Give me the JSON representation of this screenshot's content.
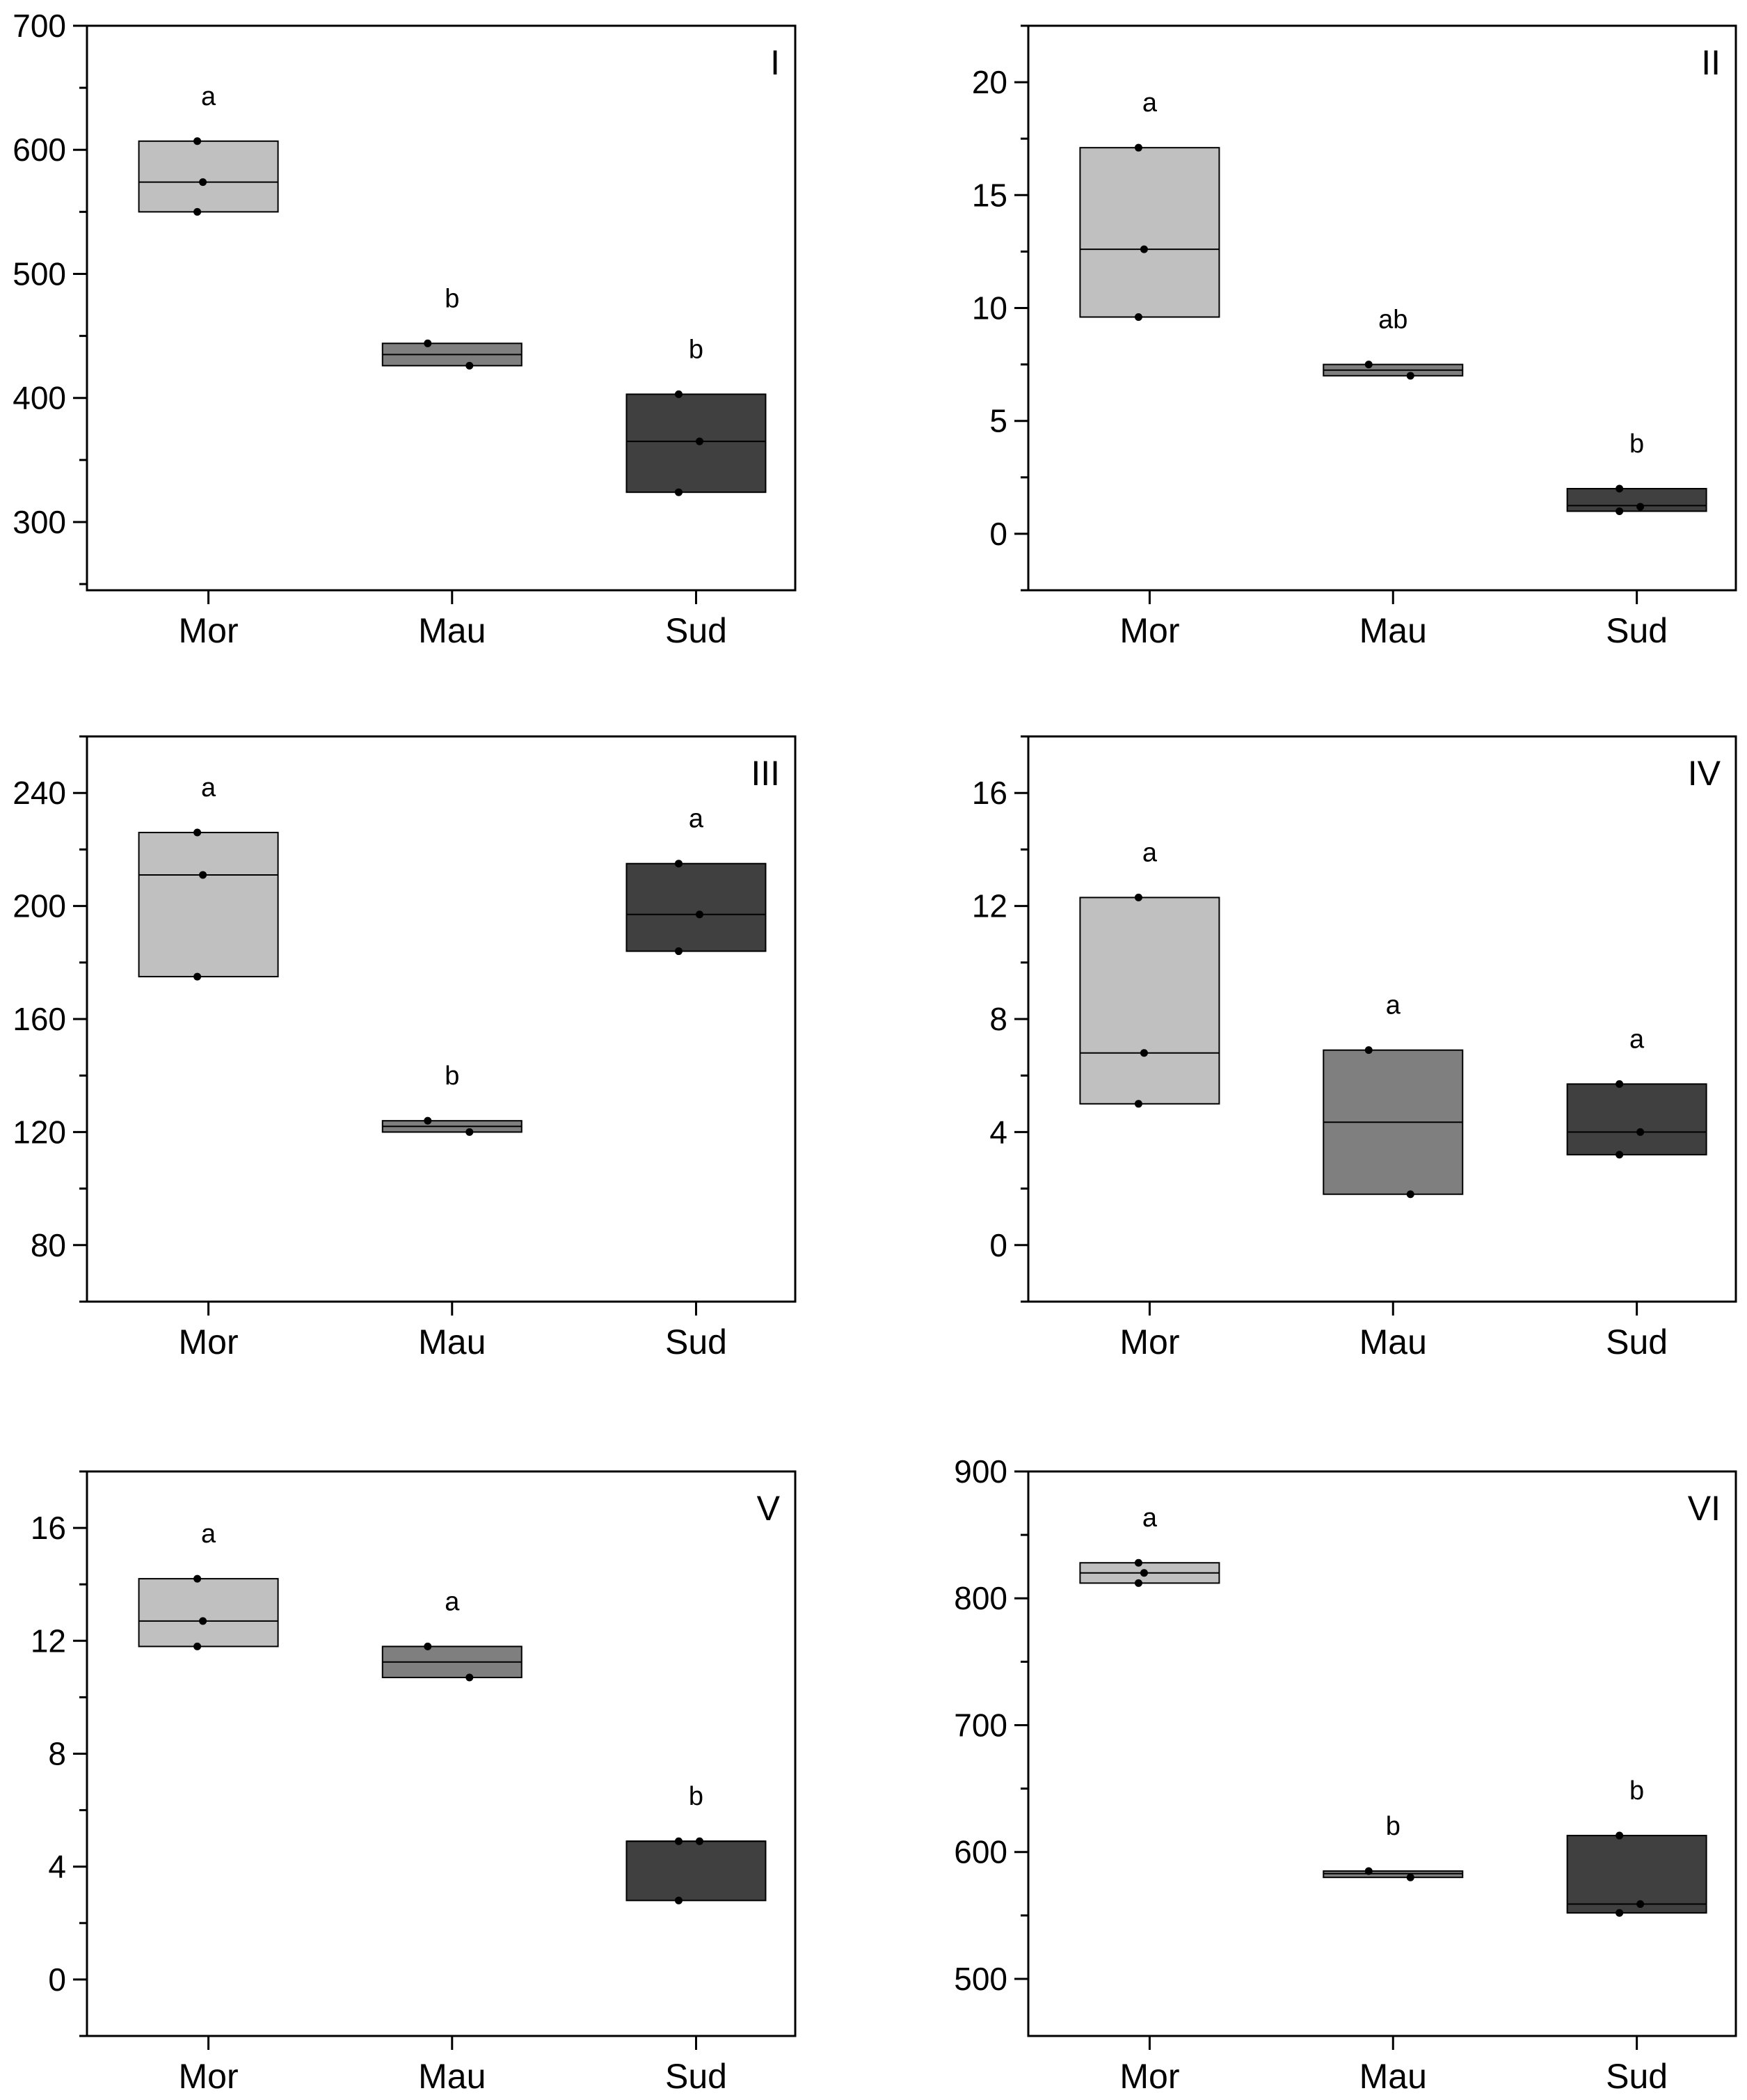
{
  "figure": {
    "categories": [
      "Mor",
      "Mau",
      "Sud"
    ]
  },
  "colors": {
    "Mor": "#c0c0c0",
    "Mau": "#7f7f7f",
    "Sud": "#404040"
  },
  "chart_data": [
    {
      "type": "box",
      "panel_label": "I",
      "categories": [
        "Mor",
        "Mau",
        "Sud"
      ],
      "ylim": [
        245,
        700
      ],
      "yticks": [
        300,
        400,
        500,
        600,
        700
      ],
      "boxes": [
        {
          "category": "Mor",
          "q1": 550,
          "median": 574,
          "q3": 607,
          "points": [
            607,
            574,
            550
          ],
          "sig": "a"
        },
        {
          "category": "Mau",
          "q1": 426,
          "median": 435,
          "q3": 444,
          "points": [
            444,
            426
          ],
          "sig": "b"
        },
        {
          "category": "Sud",
          "q1": 324,
          "median": 365,
          "q3": 403,
          "points": [
            403,
            365,
            324
          ],
          "sig": "b"
        }
      ]
    },
    {
      "type": "box",
      "panel_label": "II",
      "categories": [
        "Mor",
        "Mau",
        "Sud"
      ],
      "ylim": [
        -2.5,
        22.5
      ],
      "yticks": [
        0,
        5,
        10,
        15,
        20
      ],
      "boxes": [
        {
          "category": "Mor",
          "q1": 9.6,
          "median": 12.6,
          "q3": 17.1,
          "points": [
            17.1,
            12.6,
            9.6
          ],
          "sig": "a"
        },
        {
          "category": "Mau",
          "q1": 7.0,
          "median": 7.25,
          "q3": 7.5,
          "points": [
            7.5,
            7.0
          ],
          "sig": "ab"
        },
        {
          "category": "Sud",
          "q1": 1.0,
          "median": 1.25,
          "q3": 2.0,
          "points": [
            2.0,
            1.2,
            1.0
          ],
          "sig": "b"
        }
      ]
    },
    {
      "type": "box",
      "panel_label": "III",
      "categories": [
        "Mor",
        "Mau",
        "Sud"
      ],
      "ylim": [
        60,
        260
      ],
      "yticks": [
        80,
        120,
        160,
        200,
        240
      ],
      "boxes": [
        {
          "category": "Mor",
          "q1": 175,
          "median": 211,
          "q3": 226,
          "points": [
            226,
            211,
            175
          ],
          "sig": "a"
        },
        {
          "category": "Mau",
          "q1": 120,
          "median": 122,
          "q3": 124,
          "points": [
            124,
            120
          ],
          "sig": "b"
        },
        {
          "category": "Sud",
          "q1": 184,
          "median": 197,
          "q3": 215,
          "points": [
            215,
            197,
            184
          ],
          "sig": "a"
        }
      ]
    },
    {
      "type": "box",
      "panel_label": "IV",
      "categories": [
        "Mor",
        "Mau",
        "Sud"
      ],
      "ylim": [
        -2,
        18
      ],
      "yticks": [
        0,
        4,
        8,
        12,
        16
      ],
      "boxes": [
        {
          "category": "Mor",
          "q1": 5.0,
          "median": 6.8,
          "q3": 12.3,
          "points": [
            12.3,
            6.8,
            5.0
          ],
          "sig": "a"
        },
        {
          "category": "Mau",
          "q1": 1.8,
          "median": 4.35,
          "q3": 6.9,
          "points": [
            6.9,
            1.8
          ],
          "sig": "a"
        },
        {
          "category": "Sud",
          "q1": 3.2,
          "median": 4.0,
          "q3": 5.7,
          "points": [
            5.7,
            4.0,
            3.2
          ],
          "sig": "a"
        }
      ]
    },
    {
      "type": "box",
      "panel_label": "V",
      "categories": [
        "Mor",
        "Mau",
        "Sud"
      ],
      "ylim": [
        -2,
        18
      ],
      "yticks": [
        0,
        4,
        8,
        12,
        16
      ],
      "boxes": [
        {
          "category": "Mor",
          "q1": 11.8,
          "median": 12.7,
          "q3": 14.2,
          "points": [
            14.2,
            12.7,
            11.8
          ],
          "sig": "a"
        },
        {
          "category": "Mau",
          "q1": 10.7,
          "median": 11.25,
          "q3": 11.8,
          "points": [
            11.8,
            10.7
          ],
          "sig": "a"
        },
        {
          "category": "Sud",
          "q1": 2.8,
          "median": 4.9,
          "q3": 4.9,
          "points": [
            4.9,
            4.9,
            2.8
          ],
          "sig": "b"
        }
      ]
    },
    {
      "type": "box",
      "panel_label": "VI",
      "categories": [
        "Mor",
        "Mau",
        "Sud"
      ],
      "ylim": [
        455,
        900
      ],
      "yticks": [
        500,
        600,
        700,
        800,
        900
      ],
      "boxes": [
        {
          "category": "Mor",
          "q1": 812,
          "median": 820,
          "q3": 828,
          "points": [
            828,
            820,
            812
          ],
          "sig": "a"
        },
        {
          "category": "Mau",
          "q1": 580,
          "median": 583,
          "q3": 585,
          "points": [
            585,
            580
          ],
          "sig": "b"
        },
        {
          "category": "Sud",
          "q1": 552,
          "median": 559,
          "q3": 613,
          "points": [
            613,
            559,
            552
          ],
          "sig": "b"
        }
      ]
    }
  ]
}
